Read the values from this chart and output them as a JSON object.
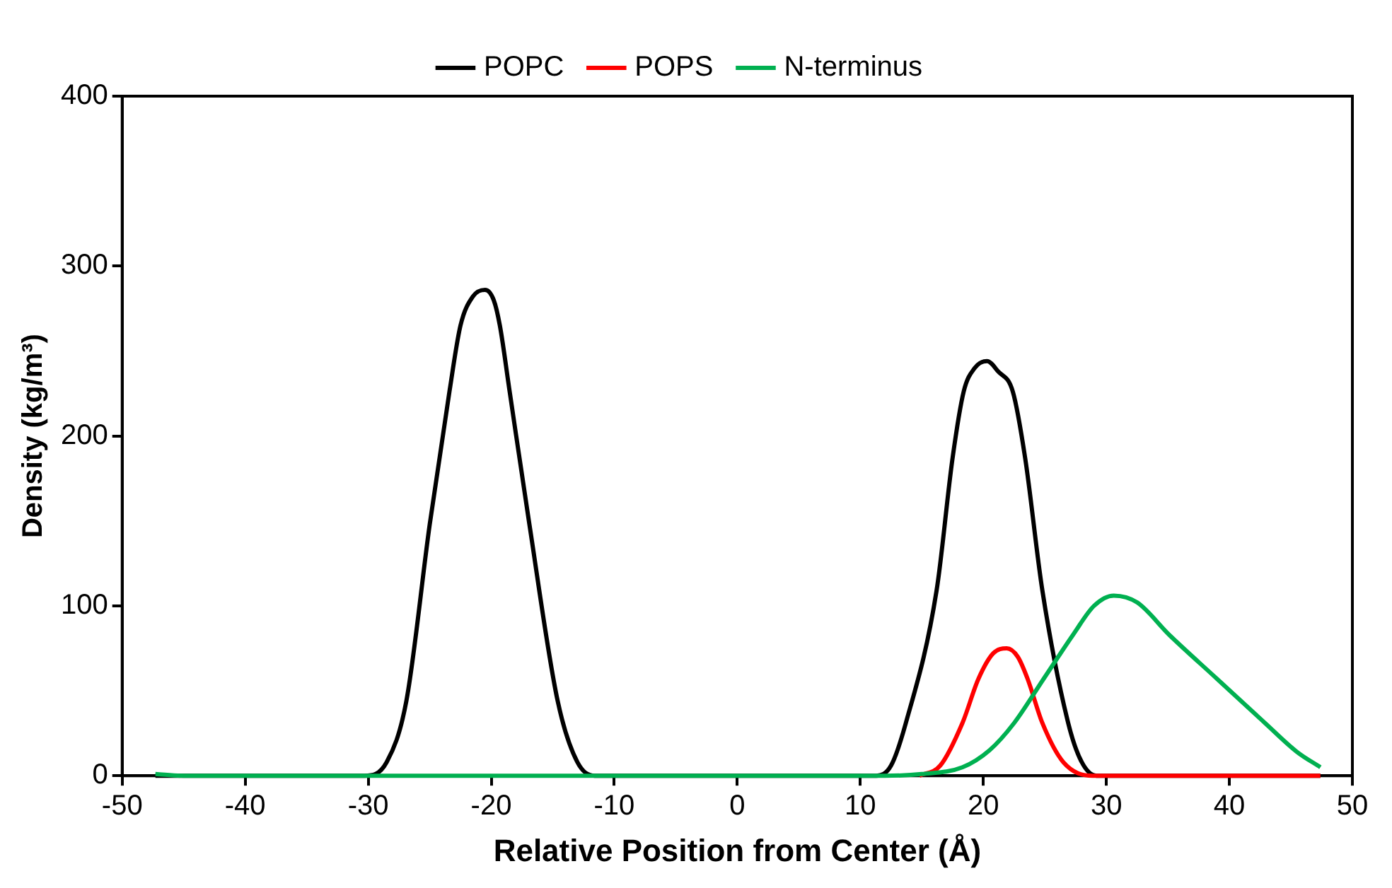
{
  "chart_data": {
    "type": "line",
    "xlabel": "Relative Position from Center (Å)",
    "ylabel": "Density (kg/m³)",
    "xlim": [
      -50,
      50
    ],
    "xticks": [
      -50,
      -40,
      -30,
      -20,
      -10,
      0,
      10,
      20,
      30,
      40,
      50
    ],
    "ylim": [
      0,
      400
    ],
    "yticks": [
      0,
      100,
      200,
      300,
      400
    ],
    "grid": false,
    "legend": "top",
    "marker": "none",
    "line_style": "solid",
    "series": [
      {
        "name": "POPC",
        "color": "#000000",
        "x": [
          -47.3,
          -31,
          -30.3,
          -28.5,
          -26.9,
          -25,
          -23.4,
          -22.5,
          -21.5,
          -20.5,
          -19.8,
          -19.3,
          -18.5,
          -16.9,
          -14.6,
          -13,
          -11.6,
          10.5,
          11.3,
          12.5,
          13.7,
          16.2,
          17.5,
          18.4,
          19.3,
          20.3,
          21.2,
          22.4,
          23.4,
          24.8,
          26.9,
          28,
          29.2,
          47.4
        ],
        "values": [
          0,
          0,
          0,
          8,
          44,
          148,
          226,
          265,
          282,
          286,
          280,
          265,
          226,
          148,
          44,
          8,
          0,
          0,
          0,
          6,
          31,
          109,
          187,
          226,
          240,
          244,
          238,
          226,
          187,
          109,
          31,
          8,
          0,
          0
        ]
      },
      {
        "name": "POPS",
        "color": "#ff0000",
        "x": [
          14.8,
          16.5,
          18.3,
          19.6,
          20.8,
          21.9,
          22.8,
          23.6,
          24.8,
          26.5,
          28.9,
          47.4
        ],
        "values": [
          0,
          6,
          31,
          57,
          72,
          75,
          70,
          57,
          31,
          8,
          0,
          0
        ]
      },
      {
        "name": "N-terminus",
        "color": "#00b050",
        "x": [
          -47.3,
          -45,
          12,
          15,
          18.3,
          20.5,
          22.5,
          24.9,
          27.3,
          29,
          30.6,
          32.5,
          35.1,
          39,
          42.9,
          45.5,
          47.4
        ],
        "values": [
          1,
          0,
          0,
          1,
          5,
          15,
          31,
          57,
          83,
          100,
          106,
          102,
          83,
          57,
          31,
          14,
          5
        ]
      }
    ]
  }
}
